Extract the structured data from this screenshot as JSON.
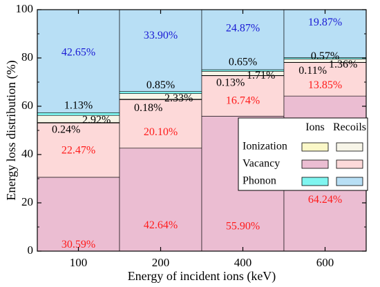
{
  "chart_data": {
    "type": "bar",
    "stacked": true,
    "xlabel": "Energy of incident ions (keV)",
    "ylabel": "Energy loss distribution (%)",
    "categories": [
      "100",
      "200",
      "400",
      "600"
    ],
    "ylim": [
      0,
      100
    ],
    "yticks": [
      "0",
      "20",
      "40",
      "60",
      "80",
      "100"
    ],
    "series": [
      {
        "name": "Vacancy (Ions)",
        "color": "#ebbdd2",
        "values": [
          30.59,
          42.64,
          55.9,
          64.24
        ]
      },
      {
        "name": "Vacancy (Recoils)",
        "color": "#fdd9d9",
        "values": [
          22.47,
          20.1,
          16.74,
          13.85
        ]
      },
      {
        "name": "Ionization (Ions)",
        "color": "#fbf8c8",
        "values": [
          0.24,
          0.18,
          0.13,
          0.11
        ]
      },
      {
        "name": "Ionization (Recoils)",
        "color": "#f7f5e8",
        "values": [
          2.92,
          2.33,
          1.71,
          1.36
        ]
      },
      {
        "name": "Phonon (Ions)",
        "color": "#7ff5f0",
        "values": [
          1.13,
          0.85,
          0.65,
          0.57
        ]
      },
      {
        "name": "Phonon (Recoils)",
        "color": "#b8dff5",
        "values": [
          42.65,
          33.9,
          24.87,
          19.87
        ]
      }
    ],
    "data_labels": [
      {
        "category": "100",
        "text": "30.59%",
        "y": 2.5,
        "color": "#ff1a1a"
      },
      {
        "category": "100",
        "text": "22.47%",
        "y": 41.5,
        "color": "#ff1a1a"
      },
      {
        "category": "100",
        "text": "0.24%",
        "y": 50.0,
        "color": "#000000",
        "dx": -0.15
      },
      {
        "category": "100",
        "text": "2.92%",
        "y": 54.0,
        "color": "#000000",
        "dx": 0.22
      },
      {
        "category": "100",
        "text": "1.13%",
        "y": 60.0,
        "color": "#000000"
      },
      {
        "category": "100",
        "text": "42.65%",
        "y": 82.0,
        "color": "#1a1ad4"
      },
      {
        "category": "200",
        "text": "42.64%",
        "y": 10.5,
        "color": "#ff1a1a"
      },
      {
        "category": "200",
        "text": "20.10%",
        "y": 49.0,
        "color": "#ff1a1a"
      },
      {
        "category": "200",
        "text": "0.18%",
        "y": 59.0,
        "color": "#000000",
        "dx": -0.15
      },
      {
        "category": "200",
        "text": "2.33%",
        "y": 63.0,
        "color": "#000000",
        "dx": 0.22
      },
      {
        "category": "200",
        "text": "0.85%",
        "y": 68.5,
        "color": "#000000"
      },
      {
        "category": "200",
        "text": "33.90%",
        "y": 89.0,
        "color": "#1a1ad4"
      },
      {
        "category": "400",
        "text": "55.90%",
        "y": 10.0,
        "color": "#ff1a1a"
      },
      {
        "category": "400",
        "text": "16.74%",
        "y": 62.0,
        "color": "#ff1a1a"
      },
      {
        "category": "400",
        "text": "0.13%",
        "y": 69.5,
        "color": "#000000",
        "dx": -0.15
      },
      {
        "category": "400",
        "text": "1.71%",
        "y": 72.5,
        "color": "#000000",
        "dx": 0.22
      },
      {
        "category": "400",
        "text": "0.65%",
        "y": 78.0,
        "color": "#000000"
      },
      {
        "category": "400",
        "text": "24.87%",
        "y": 92.0,
        "color": "#1a1ad4"
      },
      {
        "category": "600",
        "text": "64.24%",
        "y": 21.0,
        "color": "#ff1a1a"
      },
      {
        "category": "600",
        "text": "13.85%",
        "y": 68.5,
        "color": "#ff1a1a"
      },
      {
        "category": "600",
        "text": "0.11%",
        "y": 74.5,
        "color": "#000000",
        "dx": -0.15
      },
      {
        "category": "600",
        "text": "1.36%",
        "y": 77.0,
        "color": "#000000",
        "dx": 0.22
      },
      {
        "category": "600",
        "text": "0.57%",
        "y": 80.5,
        "color": "#000000"
      },
      {
        "category": "600",
        "text": "19.87%",
        "y": 94.5,
        "color": "#1a1ad4"
      }
    ],
    "legend": {
      "placement": "right-middle",
      "column_headers": [
        "Ions",
        "Recoils"
      ],
      "rows": [
        {
          "label": "Ionization",
          "ions_color": "#fbf8c8",
          "recoils_color": "#f7f5e8"
        },
        {
          "label": "Vacancy",
          "ions_color": "#ebbdd2",
          "recoils_color": "#fdd9d9"
        },
        {
          "label": "Phonon",
          "ions_color": "#7ff5f0",
          "recoils_color": "#b8dff5"
        }
      ]
    }
  }
}
